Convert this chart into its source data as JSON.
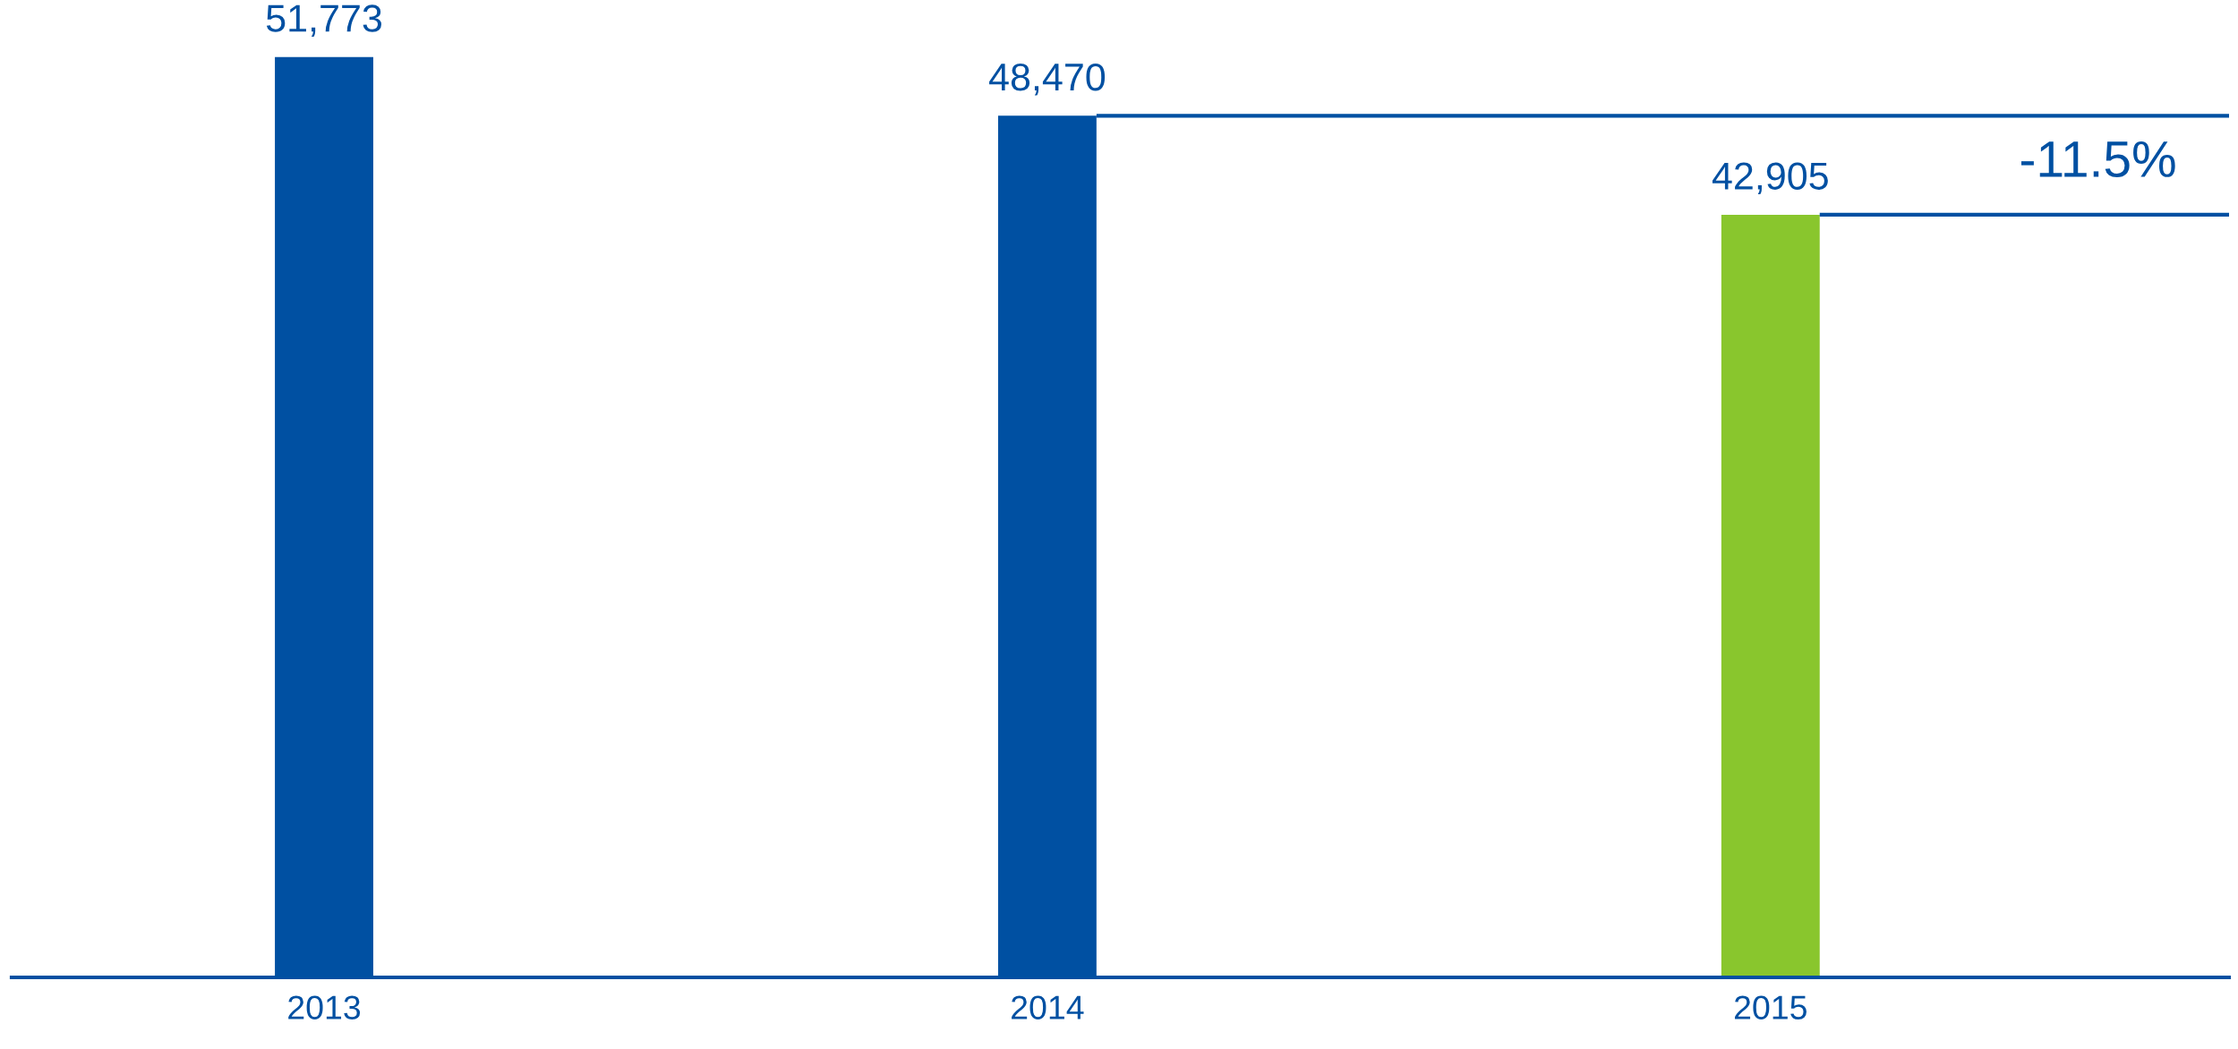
{
  "chart_data": {
    "type": "bar",
    "categories": [
      "2013",
      "2014",
      "2015"
    ],
    "values": [
      51773,
      48470,
      42905
    ],
    "colors": [
      "#0050a2",
      "#0050a2",
      "#89c62d"
    ],
    "value_labels": [
      "51,773",
      "48,470",
      "42,905"
    ],
    "tick_labels": "x",
    "ref_lines": [
      {
        "axis": "y",
        "value": 48470,
        "color": "#0050a2"
      },
      {
        "axis": "y",
        "value": 42905,
        "color": "#0050a2"
      }
    ],
    "annotations": [
      "-11.5%"
    ]
  }
}
